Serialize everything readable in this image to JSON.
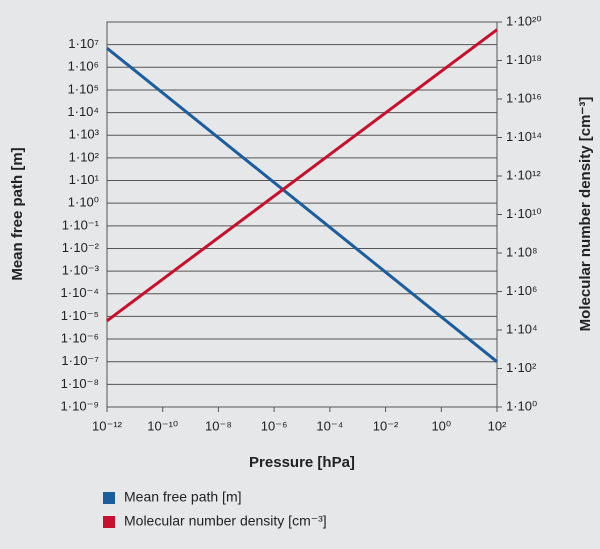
{
  "chart_data": {
    "type": "line",
    "xlabel": "Pressure [hPa]",
    "ylabel": "Mean free path [m]",
    "y2label": "Molecular number density [cm⁻³]",
    "xlog": true,
    "ylog": true,
    "y2log": true,
    "grid": true,
    "legend": "bottom",
    "xlim": [
      1e-12,
      100
    ],
    "xticks": [
      {
        "value": 1e-12,
        "label": "10⁻¹²"
      },
      {
        "value": 1e-10,
        "label": "10⁻¹⁰"
      },
      {
        "value": 1e-08,
        "label": "10⁻⁸"
      },
      {
        "value": 1e-06,
        "label": "10⁻⁶"
      },
      {
        "value": 0.0001,
        "label": "10⁻⁴"
      },
      {
        "value": 0.01,
        "label": "10⁻²"
      },
      {
        "value": 1,
        "label": "10⁰"
      },
      {
        "value": 100,
        "label": "10²"
      }
    ],
    "ylim": [
      1e-09,
      100000000.0
    ],
    "yticks": [
      {
        "value": 1e-09,
        "label": "1·10⁻⁹"
      },
      {
        "value": 1e-08,
        "label": "1·10⁻⁸"
      },
      {
        "value": 1e-07,
        "label": "1·10⁻⁷"
      },
      {
        "value": 1e-06,
        "label": "1·10⁻⁶"
      },
      {
        "value": 1e-05,
        "label": "1·10⁻⁵"
      },
      {
        "value": 0.0001,
        "label": "1·10⁻⁴"
      },
      {
        "value": 0.001,
        "label": "1·10⁻³"
      },
      {
        "value": 0.01,
        "label": "1·10⁻²"
      },
      {
        "value": 0.1,
        "label": "1·10⁻¹"
      },
      {
        "value": 1,
        "label": "1·10⁰"
      },
      {
        "value": 10,
        "label": "1·10¹"
      },
      {
        "value": 100,
        "label": "1·10²"
      },
      {
        "value": 1000,
        "label": "1·10³"
      },
      {
        "value": 10000,
        "label": "1·10⁴"
      },
      {
        "value": 100000,
        "label": "1·10⁵"
      },
      {
        "value": 1000000,
        "label": "1·10⁶"
      },
      {
        "value": 10000000,
        "label": "1·10⁷"
      }
    ],
    "y2lim": [
      1,
      1e+20
    ],
    "y2ticks": [
      {
        "value": 1,
        "label": "1·10⁰"
      },
      {
        "value": 100,
        "label": "1·10²"
      },
      {
        "value": 10000,
        "label": "1·10⁴"
      },
      {
        "value": 1000000,
        "label": "1·10⁶"
      },
      {
        "value": 100000000,
        "label": "1·10⁸"
      },
      {
        "value": 10000000000.0,
        "label": "1·10¹⁰"
      },
      {
        "value": 1000000000000.0,
        "label": "1·10¹²"
      },
      {
        "value": 100000000000000.0,
        "label": "1·10¹⁴"
      },
      {
        "value": 1e+16,
        "label": "1·10¹⁶"
      },
      {
        "value": 1e+18,
        "label": "1·10¹⁸"
      },
      {
        "value": 1e+20,
        "label": "1·10²⁰"
      }
    ],
    "x": [
      1e-12,
      100
    ],
    "series": [
      {
        "name": "Mean free path [m]",
        "color": "#1c5d9e",
        "values": [
          7000000,
          1e-07
        ]
      },
      {
        "name": "Molecular number density [cm⁻³]",
        "color": "#c8102e",
        "values": [
          30000,
          4e+19
        ],
        "axis": "y2"
      }
    ]
  }
}
